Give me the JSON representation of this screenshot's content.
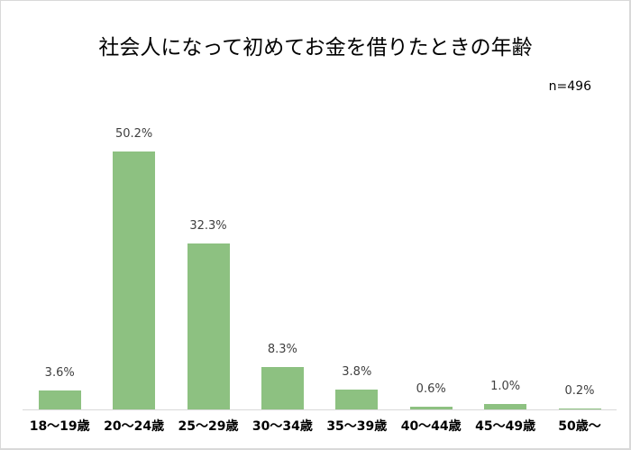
{
  "chart_data": {
    "type": "bar",
    "title": "社会人になって初めてお金を借りたときの年齢",
    "subtitle": "n=496",
    "categories": [
      "18〜19歳",
      "20〜24歳",
      "25〜29歳",
      "30〜34歳",
      "35〜39歳",
      "40〜44歳",
      "45〜49歳",
      "50歳〜"
    ],
    "values": [
      3.6,
      50.2,
      32.3,
      8.3,
      3.8,
      0.6,
      1.0,
      0.2
    ],
    "value_labels": [
      "3.6%",
      "50.2%",
      "32.3%",
      "8.3%",
      "3.8%",
      "0.6%",
      "1.0%",
      "0.2%"
    ],
    "xlabel": "",
    "ylabel": "",
    "unit": "%",
    "ylim": [
      0,
      55
    ],
    "grid": false,
    "legend": "none",
    "bar_color": "#8dc181"
  }
}
